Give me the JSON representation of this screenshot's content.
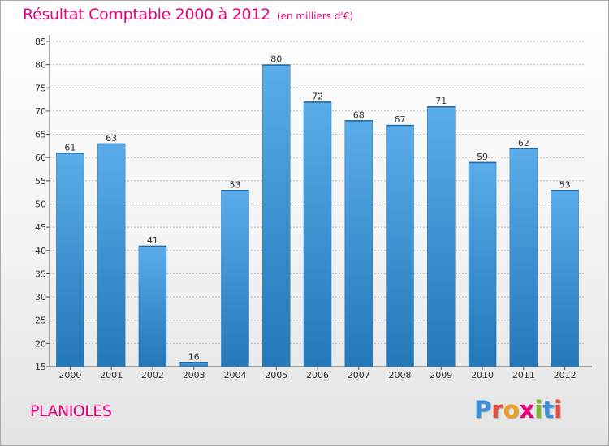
{
  "page": {
    "title": "Résultat Comptable 2000 à 2012",
    "subtitle": "(en milliers d'€)",
    "commune": "PLANIOLES",
    "logo": {
      "letters": [
        "P",
        "r",
        "o",
        "x",
        "i",
        "t",
        "i"
      ],
      "colors": [
        "#3a8fd8",
        "#e84b37",
        "#f0a020",
        "#e8007d",
        "#78b828",
        "#3a8fd8",
        "#e84b37"
      ]
    }
  },
  "colors": {
    "title": "#e8007d",
    "bar_light": "#5aacea",
    "bar_dark": "#2478b8",
    "grid": "#bdbdbd"
  },
  "chart_data": {
    "type": "bar",
    "title": "Résultat Comptable 2000 à 2012",
    "subtitle": "(en milliers d'€)",
    "xlabel": "",
    "ylabel": "",
    "categories": [
      "2000",
      "2001",
      "2002",
      "2003",
      "2004",
      "2005",
      "2006",
      "2007",
      "2008",
      "2009",
      "2010",
      "2011",
      "2012"
    ],
    "values": [
      61,
      63,
      41,
      16,
      53,
      80,
      72,
      68,
      67,
      71,
      59,
      62,
      53
    ],
    "ylim": [
      15,
      85
    ],
    "yticks": [
      15,
      20,
      25,
      30,
      35,
      40,
      45,
      50,
      55,
      60,
      65,
      70,
      75,
      80,
      85
    ],
    "grid": true,
    "data_labels": true
  }
}
